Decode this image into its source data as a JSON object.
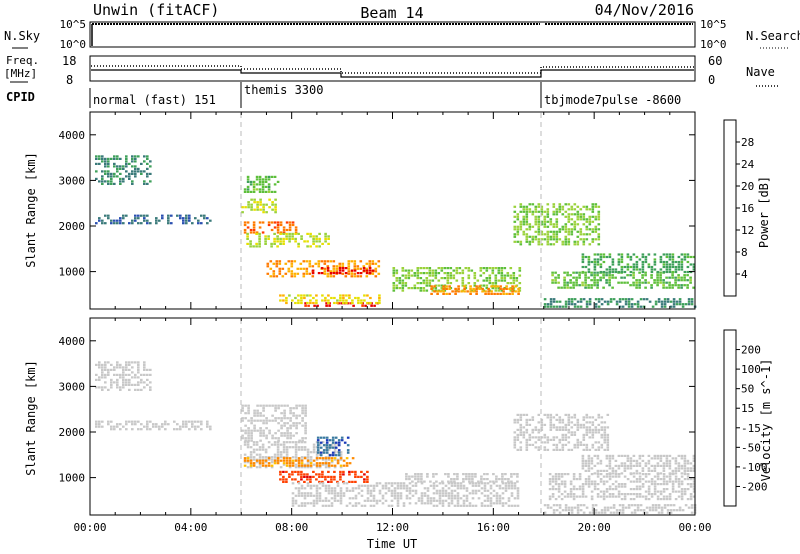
{
  "header": {
    "station": "Unwin (fitACF)",
    "beam": "Beam 14",
    "date": "04/Nov/2016"
  },
  "top_panels": {
    "nsky_label": "N.Sky",
    "nsearch_label": "N.Search",
    "noise_ticks": [
      "10^5",
      "10^0"
    ],
    "freq_label": "Freq.",
    "freq_unit": "[MHz]",
    "freq_ticks": [
      "18",
      "8"
    ],
    "nave_label": "Nave",
    "nave_ticks": [
      "60",
      "0"
    ],
    "cpid_label": "CPID",
    "cpid_segments": [
      {
        "name": "normal (fast) 151",
        "start_hour": 0,
        "end_hour": 6
      },
      {
        "name": "themis 3300",
        "start_hour": 6,
        "end_hour": 18
      },
      {
        "name": "tbjmode7pulse -8600",
        "start_hour": 18,
        "end_hour": 24
      }
    ]
  },
  "chart_data": [
    {
      "type": "heatmap",
      "title": "",
      "xlabel": "",
      "ylabel": "Slant Range [km]",
      "x_unit": "hours UT",
      "xlim": [
        0,
        24
      ],
      "ylim": [
        180,
        4500
      ],
      "yticks": [
        "1000",
        "2000",
        "3000",
        "4000"
      ],
      "colorbar": {
        "label": "Power [dB]",
        "ticks": [
          "28",
          "24",
          "20",
          "16",
          "12",
          "8",
          "4"
        ],
        "range": [
          0,
          30
        ],
        "colors": [
          "#1a1aff",
          "#2a4fb0",
          "#3a7a7a",
          "#3ea05a",
          "#5dbf3a",
          "#9ad23a",
          "#e6e000",
          "#ffb000",
          "#ff7a00",
          "#ff3a00",
          "#e60000"
        ]
      },
      "bands": [
        {
          "t0": 0.2,
          "t1": 2.4,
          "r0": 2900,
          "r1": 3550,
          "value": 8
        },
        {
          "t0": 0.2,
          "t1": 4.8,
          "r0": 2050,
          "r1": 2250,
          "value": 6
        },
        {
          "t0": 6.0,
          "t1": 7.4,
          "r0": 2300,
          "r1": 2600,
          "value": 16
        },
        {
          "t0": 6.1,
          "t1": 8.2,
          "r0": 1850,
          "r1": 2100,
          "value": 24
        },
        {
          "t0": 6.2,
          "t1": 9.5,
          "r0": 1550,
          "r1": 1850,
          "value": 16
        },
        {
          "t0": 6.1,
          "t1": 7.5,
          "r0": 2750,
          "r1": 3100,
          "value": 12
        },
        {
          "t0": 7.0,
          "t1": 11.5,
          "r0": 900,
          "r1": 1250,
          "value": 22
        },
        {
          "t0": 8.8,
          "t1": 11.2,
          "r0": 950,
          "r1": 1100,
          "value": 29
        },
        {
          "t0": 8.5,
          "t1": 11.5,
          "r0": 230,
          "r1": 330,
          "value": 28
        },
        {
          "t0": 7.5,
          "t1": 11.5,
          "r0": 330,
          "r1": 500,
          "value": 18
        },
        {
          "t0": 12.0,
          "t1": 17.0,
          "r0": 600,
          "r1": 1100,
          "value": 14
        },
        {
          "t0": 13.5,
          "t1": 17.0,
          "r0": 500,
          "r1": 700,
          "value": 22
        },
        {
          "t0": 16.8,
          "t1": 20.2,
          "r0": 1600,
          "r1": 2500,
          "value": 14
        },
        {
          "t0": 18.0,
          "t1": 24.0,
          "r0": 250,
          "r1": 420,
          "value": 8
        },
        {
          "t0": 18.3,
          "t1": 24.0,
          "r0": 650,
          "r1": 1000,
          "value": 12
        },
        {
          "t0": 19.5,
          "t1": 24.0,
          "r0": 1000,
          "r1": 1400,
          "value": 10
        }
      ]
    },
    {
      "type": "heatmap",
      "title": "",
      "xlabel": "Time UT",
      "ylabel": "Slant Range [km]",
      "x_unit": "hours UT",
      "xlim": [
        0,
        24
      ],
      "ylim": [
        180,
        4500
      ],
      "xticks": [
        "00:00",
        "04:00",
        "08:00",
        "12:00",
        "16:00",
        "20:00",
        "00:00"
      ],
      "yticks": [
        "1000",
        "2000",
        "3000",
        "4000"
      ],
      "colorbar": {
        "label": "Velocity [m s^-1]",
        "ticks": [
          "200",
          "100",
          "50",
          "15",
          "-15",
          "-50",
          "-100",
          "-200"
        ],
        "range": [
          -250,
          250
        ],
        "colors": [
          "#e00000",
          "#ff4000",
          "#ff8a00",
          "#ffc000",
          "#c8c8c8",
          "#c8c8c8",
          "#8ad24a",
          "#3aa03a",
          "#3a7aa0",
          "#1a3ab8"
        ]
      },
      "bands": [
        {
          "t0": 0.2,
          "t1": 2.4,
          "r0": 2900,
          "r1": 3550,
          "value": -10
        },
        {
          "t0": 0.2,
          "t1": 4.8,
          "r0": 2050,
          "r1": 2250,
          "value": 0
        },
        {
          "t0": 6.0,
          "t1": 8.5,
          "r0": 1800,
          "r1": 2600,
          "value": 0
        },
        {
          "t0": 6.1,
          "t1": 10.0,
          "r0": 1200,
          "r1": 1800,
          "value": 5
        },
        {
          "t0": 6.1,
          "t1": 10.5,
          "r0": 1250,
          "r1": 1450,
          "value": -120
        },
        {
          "t0": 9.0,
          "t1": 10.2,
          "r0": 1500,
          "r1": 1900,
          "value": 180
        },
        {
          "t0": 7.5,
          "t1": 11.0,
          "r0": 900,
          "r1": 1150,
          "value": -180
        },
        {
          "t0": 8.0,
          "t1": 17.0,
          "r0": 400,
          "r1": 900,
          "value": 0
        },
        {
          "t0": 12.5,
          "t1": 17.0,
          "r0": 900,
          "r1": 1100,
          "value": 10
        },
        {
          "t0": 16.8,
          "t1": 20.5,
          "r0": 1600,
          "r1": 2400,
          "value": 5
        },
        {
          "t0": 18.2,
          "t1": 24.0,
          "r0": 500,
          "r1": 1100,
          "value": -5
        },
        {
          "t0": 19.5,
          "t1": 24.0,
          "r0": 1100,
          "r1": 1500,
          "value": -8
        },
        {
          "t0": 18.0,
          "t1": 24.0,
          "r0": 250,
          "r1": 420,
          "value": 0
        }
      ]
    }
  ]
}
